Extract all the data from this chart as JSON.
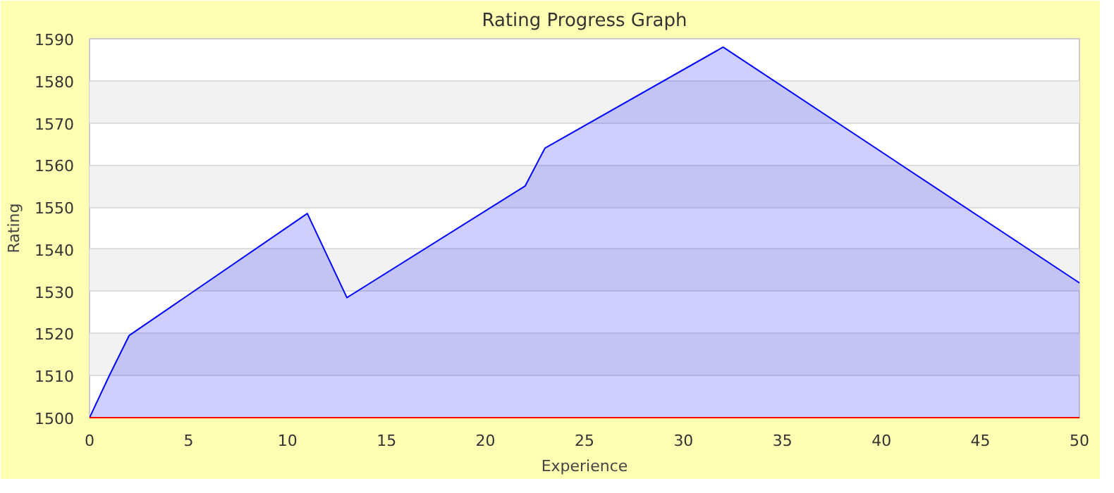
{
  "chart_data": {
    "type": "area",
    "title": "Rating Progress Graph",
    "xlabel": "Experience",
    "ylabel": "Rating",
    "x": [
      0,
      1,
      2,
      11,
      13,
      22,
      23,
      32,
      50
    ],
    "series": [
      {
        "color": "#0000ff",
        "values": [
          1500,
          1510,
          1519.5,
          1548.5,
          1528.5,
          1555,
          1564,
          1588,
          1532
        ]
      }
    ],
    "xlim": [
      0,
      50
    ],
    "ylim": [
      1500,
      1590
    ],
    "xticks": [
      0,
      5,
      10,
      15,
      20,
      25,
      30,
      35,
      40,
      45,
      50
    ],
    "yticks": [
      1500,
      1510,
      1520,
      1530,
      1540,
      1550,
      1560,
      1570,
      1580,
      1590
    ],
    "grid": "y"
  }
}
